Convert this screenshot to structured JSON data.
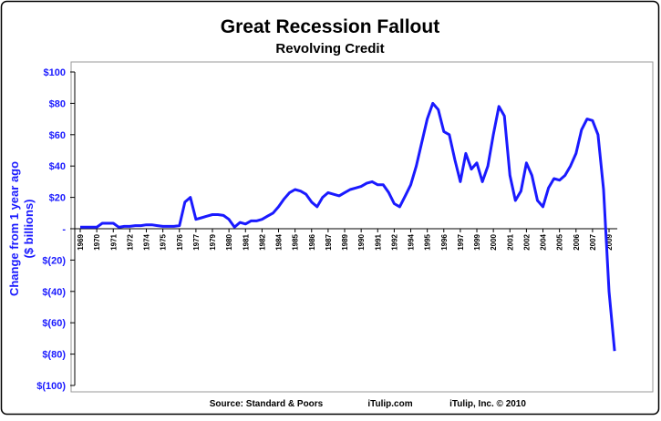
{
  "chart_data": {
    "type": "line",
    "title": "Great Recession Fallout",
    "subtitle": "Revolving Credit",
    "ylabel": [
      "Change from 1 year ago",
      "($ billions)"
    ],
    "footer": [
      "Source: Standard & Poors",
      "iTulip.com",
      "iTulip, Inc. © 2010"
    ],
    "categories": [
      "1969",
      null,
      null,
      "1970",
      null,
      null,
      "1971",
      null,
      null,
      "1972",
      null,
      null,
      "1974",
      null,
      null,
      "1975",
      null,
      null,
      "1976",
      null,
      null,
      "1977",
      null,
      null,
      "1979",
      null,
      null,
      "1980",
      null,
      null,
      "1981",
      null,
      null,
      "1982",
      null,
      null,
      "1984",
      null,
      null,
      "1985",
      null,
      null,
      "1986",
      null,
      null,
      "1987",
      null,
      null,
      "1989",
      null,
      null,
      "1990",
      null,
      null,
      "1991",
      null,
      null,
      "1992",
      null,
      null,
      "1994",
      null,
      null,
      "1995",
      null,
      null,
      "1996",
      null,
      null,
      "1997",
      null,
      null,
      "1999",
      null,
      null,
      "2000",
      null,
      null,
      "2001",
      null,
      null,
      "2002",
      null,
      null,
      "2004",
      null,
      null,
      "2005",
      null,
      null,
      "2006",
      null,
      null,
      "2007",
      null,
      null,
      "2009",
      null
    ],
    "series": [
      {
        "color": "#1a1aff",
        "values": [
          1,
          1,
          1,
          1,
          3.5,
          3.5,
          3.5,
          1,
          1.5,
          1.5,
          2,
          2,
          2.5,
          2.5,
          2,
          1.5,
          1.5,
          1.5,
          2,
          17,
          20,
          6,
          7,
          8,
          9,
          9,
          8.5,
          6,
          1,
          4,
          3,
          5,
          5,
          6,
          8,
          10,
          14,
          19,
          23,
          25,
          24,
          22,
          17,
          14,
          20,
          23,
          22,
          21,
          23,
          25,
          26,
          27,
          29,
          30,
          28,
          28,
          23,
          16,
          14,
          21,
          28,
          40,
          55,
          70,
          80,
          76,
          62,
          60,
          44,
          30,
          48,
          38,
          42,
          30,
          40,
          60,
          78,
          72,
          34,
          18,
          24,
          42,
          34,
          18,
          14,
          26,
          32,
          31,
          34,
          40,
          48,
          63,
          70,
          69,
          60,
          25,
          -40,
          -78
        ]
      }
    ],
    "ylim": [
      -100,
      100
    ],
    "yticks": [
      {
        "value": 100,
        "label": "$100"
      },
      {
        "value": 80,
        "label": "$80"
      },
      {
        "value": 60,
        "label": "$60"
      },
      {
        "value": 40,
        "label": "$40"
      },
      {
        "value": 20,
        "label": "$20"
      },
      {
        "value": 0,
        "label": "-"
      },
      {
        "value": -20,
        "label": "$(20)"
      },
      {
        "value": -40,
        "label": "$(40)"
      },
      {
        "value": -60,
        "label": "$(60)"
      },
      {
        "value": -80,
        "label": "$(80)"
      },
      {
        "value": -100,
        "label": "$(100)"
      }
    ],
    "axis_color": "#1a1aff"
  }
}
